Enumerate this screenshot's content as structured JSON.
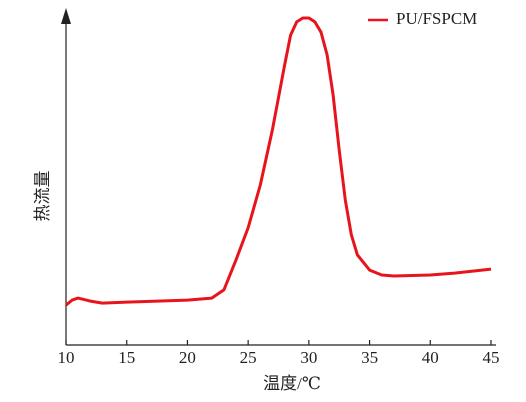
{
  "chart_data": {
    "type": "line",
    "x_label": "温度/℃",
    "y_label": "热流量",
    "x": [
      10,
      10.5,
      11,
      12,
      13,
      15,
      20,
      22,
      23,
      24,
      25,
      26,
      27,
      28,
      28.5,
      29,
      29.5,
      30,
      30.5,
      31,
      31.5,
      32,
      32.5,
      33,
      33.5,
      34,
      35,
      36,
      37,
      40,
      42,
      45
    ],
    "series": [
      {
        "name": "PU/FSPCM",
        "color": "#e8141c",
        "values": [
          12.1,
          13.6,
          14.2,
          13.3,
          12.7,
          13.0,
          13.6,
          14.2,
          16.7,
          25.8,
          35.5,
          48.5,
          65.2,
          84.8,
          93.9,
          97.9,
          99.1,
          99.1,
          97.9,
          94.8,
          87.9,
          75.8,
          59.1,
          43.9,
          33.3,
          27.3,
          22.7,
          21.2,
          20.9,
          21.2,
          21.8,
          23.0
        ]
      }
    ],
    "xlim": [
      10,
      45
    ],
    "xticks": [
      10,
      15,
      20,
      25,
      30,
      35,
      40,
      45
    ],
    "ylim": [
      0,
      100
    ],
    "legend": "upper right"
  }
}
